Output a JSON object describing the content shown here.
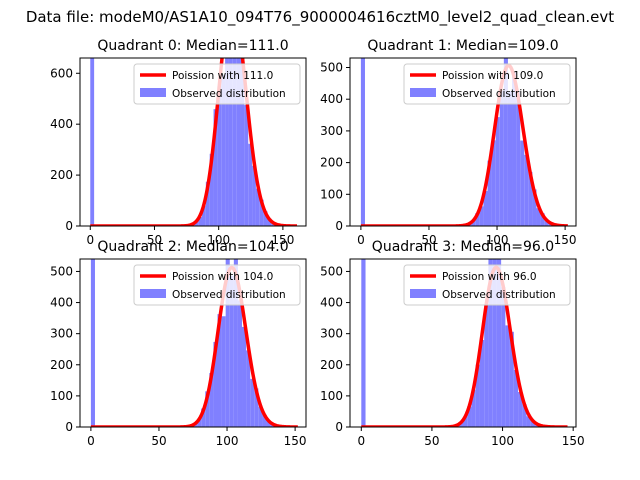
{
  "figure_title": "Data file: modeM0/AS1A10_094T76_9000004616cztM0_level2_quad_clean.evt",
  "colors": {
    "model": "#ff0000",
    "hist": "#8080ff",
    "axis": "#000000"
  },
  "chart_data": [
    {
      "type": "bar",
      "title": "Quadrant 0: Median=111.0",
      "xlim": [
        -8,
        168
      ],
      "ylim": [
        0,
        660
      ],
      "xticks": [
        0,
        50,
        100,
        150
      ],
      "yticks": [
        0,
        200,
        400,
        600
      ],
      "mean": 111,
      "scale": 23200,
      "zero_bin": 660,
      "legend": [
        "Poission with 111.0",
        "Observed distribution"
      ],
      "legend_position": "top-right"
    },
    {
      "type": "bar",
      "title": "Quadrant 1: Median=109.0",
      "xlim": [
        -8,
        158
      ],
      "ylim": [
        0,
        530
      ],
      "xticks": [
        0,
        50,
        100,
        150
      ],
      "yticks": [
        0,
        100,
        200,
        300,
        400,
        500
      ],
      "mean": 109,
      "scale": 13250,
      "zero_bin": 530,
      "legend": [
        "Poission with 109.0",
        "Observed distribution"
      ],
      "legend_position": "top-right"
    },
    {
      "type": "bar",
      "title": "Quadrant 2: Median=104.0",
      "xlim": [
        -8,
        158
      ],
      "ylim": [
        0,
        540
      ],
      "xticks": [
        0,
        50,
        100,
        150
      ],
      "yticks": [
        0,
        100,
        200,
        300,
        400,
        500
      ],
      "mean": 104,
      "scale": 13100,
      "zero_bin": 540,
      "legend": [
        "Poission with 104.0",
        "Observed distribution"
      ],
      "legend_position": "top-right"
    },
    {
      "type": "bar",
      "title": "Quadrant 3: Median=96.0",
      "xlim": [
        -8,
        152
      ],
      "ylim": [
        0,
        540
      ],
      "xticks": [
        0,
        50,
        100,
        150
      ],
      "yticks": [
        0,
        100,
        200,
        300,
        400,
        500
      ],
      "mean": 96,
      "scale": 12600,
      "zero_bin": 540,
      "legend": [
        "Poission with 96.0",
        "Observed distribution"
      ],
      "legend_position": "top-right"
    }
  ]
}
